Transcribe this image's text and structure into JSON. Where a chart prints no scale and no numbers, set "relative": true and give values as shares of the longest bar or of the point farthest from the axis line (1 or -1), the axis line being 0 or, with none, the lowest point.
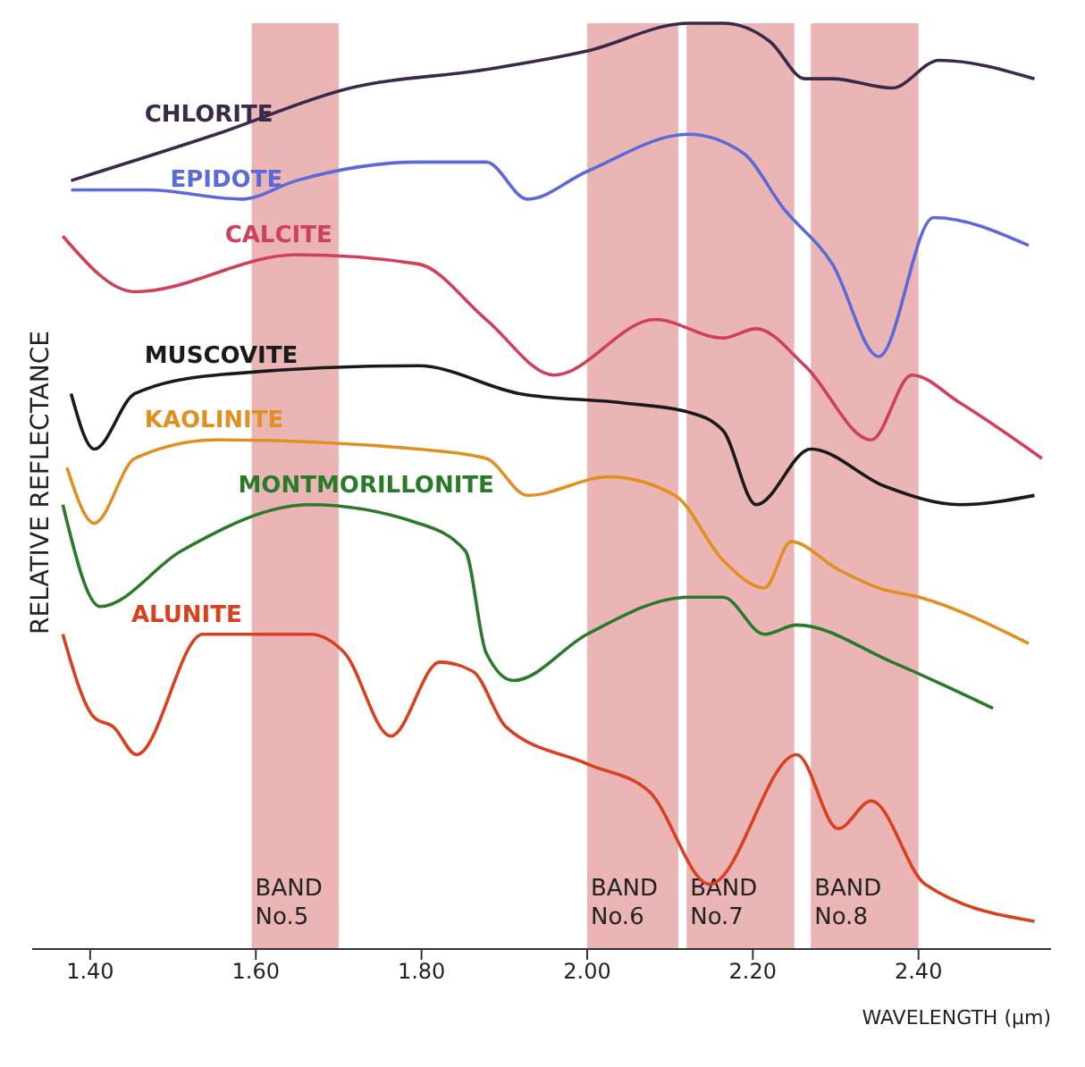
{
  "chart_data": {
    "type": "line",
    "relative": true,
    "xlabel": "WAVELENGTH (μm)",
    "ylabel": "RELATIVE REFLECTANCE",
    "xlim": [
      1.33,
      2.56
    ],
    "xticks": [
      {
        "value": 1.4,
        "label": "1.40"
      },
      {
        "value": 1.6,
        "label": "1.60"
      },
      {
        "value": 1.8,
        "label": "1.80"
      },
      {
        "value": 2.0,
        "label": "2.00"
      },
      {
        "value": 2.2,
        "label": "2.20"
      },
      {
        "value": 2.4,
        "label": "2.40"
      }
    ],
    "marker": "none",
    "line_style": "solid",
    "bands": [
      {
        "axis": "x",
        "from": 1.595,
        "to": 1.7,
        "label": "BAND No.5",
        "color": "#e8a8a8"
      },
      {
        "axis": "x",
        "from": 2.0,
        "to": 2.11,
        "label": "BAND No.6",
        "color": "#e8a8a8"
      },
      {
        "axis": "x",
        "from": 2.12,
        "to": 2.25,
        "label": "BAND No.7",
        "color": "#e8a8a8"
      },
      {
        "axis": "x",
        "from": 2.27,
        "to": 2.4,
        "label": "BAND No.8",
        "color": "#e8a8a8"
      }
    ],
    "series": [
      {
        "name": "CHLORITE",
        "color": "#3a2a4a",
        "x": [
          1.377,
          1.552,
          1.714,
          1.878,
          2.0,
          2.122,
          2.164,
          2.221,
          2.263,
          2.296,
          2.368,
          2.425,
          2.54
        ],
        "values": [
          0.83,
          0.88,
          0.93,
          0.95,
          0.97,
          1.0,
          1.0,
          0.98,
          0.94,
          0.94,
          0.93,
          0.96,
          0.94
        ]
      },
      {
        "name": "EPIDOTE",
        "color": "#5a6ad8",
        "x": [
          1.377,
          1.47,
          1.583,
          1.649,
          1.796,
          1.878,
          1.928,
          2.0,
          2.122,
          2.188,
          2.237,
          2.296,
          2.352,
          2.418,
          2.533
        ],
        "values": [
          0.82,
          0.82,
          0.81,
          0.83,
          0.85,
          0.85,
          0.81,
          0.84,
          0.88,
          0.86,
          0.8,
          0.74,
          0.64,
          0.79,
          0.76
        ]
      },
      {
        "name": "CALCITE",
        "color": "#d0405a",
        "x": [
          1.367,
          1.454,
          1.649,
          1.796,
          1.878,
          1.96,
          2.082,
          2.164,
          2.204,
          2.263,
          2.343,
          2.392,
          2.45,
          2.549
        ],
        "values": [
          0.77,
          0.71,
          0.75,
          0.74,
          0.68,
          0.62,
          0.68,
          0.66,
          0.67,
          0.63,
          0.55,
          0.62,
          0.59,
          0.53
        ]
      },
      {
        "name": "MUSCOVITE",
        "color": "#1a1a1a",
        "x": [
          1.377,
          1.405,
          1.454,
          1.552,
          1.796,
          1.918,
          2.042,
          2.122,
          2.164,
          2.204,
          2.27,
          2.359,
          2.45,
          2.54
        ],
        "values": [
          0.6,
          0.54,
          0.6,
          0.62,
          0.63,
          0.6,
          0.59,
          0.58,
          0.56,
          0.48,
          0.54,
          0.5,
          0.48,
          0.49
        ]
      },
      {
        "name": "KAOLINITE",
        "color": "#e09020",
        "x": [
          1.372,
          1.405,
          1.454,
          1.552,
          1.796,
          1.878,
          1.928,
          2.026,
          2.106,
          2.164,
          2.214,
          2.246,
          2.303,
          2.352,
          2.401,
          2.533
        ],
        "values": [
          0.52,
          0.46,
          0.53,
          0.55,
          0.54,
          0.53,
          0.49,
          0.51,
          0.49,
          0.42,
          0.39,
          0.44,
          0.41,
          0.39,
          0.38,
          0.33
        ]
      },
      {
        "name": "MONTMORILLONITE",
        "color": "#2a7a2a",
        "x": [
          1.367,
          1.412,
          1.51,
          1.665,
          1.796,
          1.853,
          1.878,
          1.911,
          2.0,
          2.122,
          2.164,
          2.214,
          2.253,
          2.368,
          2.49
        ],
        "values": [
          0.48,
          0.37,
          0.43,
          0.48,
          0.46,
          0.43,
          0.32,
          0.29,
          0.34,
          0.38,
          0.38,
          0.34,
          0.35,
          0.31,
          0.26
        ]
      },
      {
        "name": "ALUNITE",
        "color": "#d8401e",
        "x": [
          1.367,
          1.405,
          1.428,
          1.456,
          1.536,
          1.665,
          1.707,
          1.763,
          1.822,
          1.862,
          1.902,
          2.0,
          2.075,
          2.148,
          2.253,
          2.303,
          2.343,
          2.408,
          2.54
        ],
        "values": [
          0.34,
          0.25,
          0.24,
          0.21,
          0.34,
          0.34,
          0.32,
          0.23,
          0.31,
          0.3,
          0.24,
          0.2,
          0.17,
          0.07,
          0.21,
          0.13,
          0.16,
          0.07,
          0.03
        ]
      }
    ]
  }
}
